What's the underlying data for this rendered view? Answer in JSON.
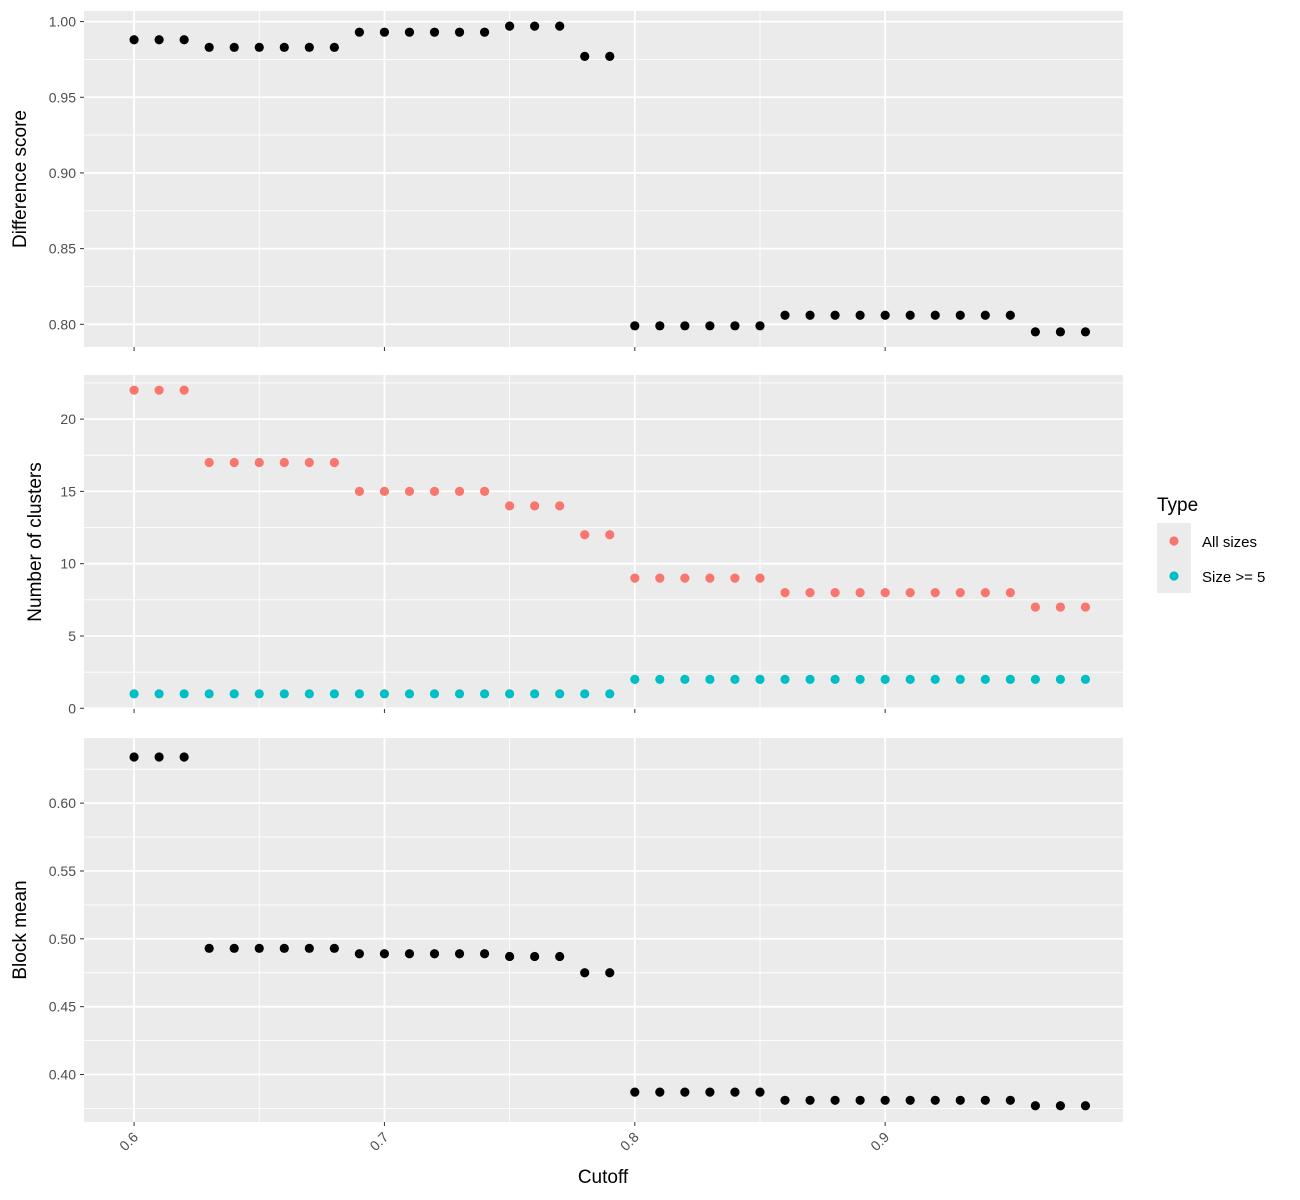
{
  "chart_data": {
    "type": "scatter",
    "xlabel": "Cutoff",
    "x_ticks": [
      "0.6",
      "0.7",
      "0.8",
      "0.9"
    ],
    "x_tick_values": [
      0.6,
      0.7,
      0.8,
      0.9
    ],
    "xlim": [
      0.58,
      0.995
    ],
    "x": [
      0.6,
      0.61,
      0.62,
      0.63,
      0.64,
      0.65,
      0.66,
      0.67,
      0.68,
      0.69,
      0.7,
      0.71,
      0.72,
      0.73,
      0.74,
      0.75,
      0.76,
      0.77,
      0.78,
      0.79,
      0.8,
      0.81,
      0.82,
      0.83,
      0.84,
      0.85,
      0.86,
      0.87,
      0.88,
      0.89,
      0.9,
      0.91,
      0.92,
      0.93,
      0.94,
      0.95,
      0.96,
      0.97,
      0.98
    ],
    "grid": true,
    "panel_background": "#ebebeb",
    "grid_color": "#ffffff",
    "panels": [
      {
        "ylabel": "Difference score",
        "ylim": [
          0.785,
          1.007
        ],
        "y_ticks": [
          "0.80",
          "0.85",
          "0.90",
          "0.95",
          "1.00"
        ],
        "y_tick_values": [
          0.8,
          0.85,
          0.9,
          0.95,
          1.0
        ],
        "series": [
          {
            "color": "#000000",
            "values": [
              0.988,
              0.988,
              0.988,
              0.983,
              0.983,
              0.983,
              0.983,
              0.983,
              0.983,
              0.993,
              0.993,
              0.993,
              0.993,
              0.993,
              0.993,
              0.997,
              0.997,
              0.997,
              0.977,
              0.977,
              0.799,
              0.799,
              0.799,
              0.799,
              0.799,
              0.799,
              0.806,
              0.806,
              0.806,
              0.806,
              0.806,
              0.806,
              0.806,
              0.806,
              0.806,
              0.806,
              0.795,
              0.795,
              0.795
            ]
          }
        ]
      },
      {
        "ylabel": "Number of clusters",
        "ylim": [
          -0.05,
          23.05
        ],
        "y_ticks": [
          "0",
          "5",
          "10",
          "15",
          "20"
        ],
        "y_tick_values": [
          0,
          5,
          10,
          15,
          20
        ],
        "series": [
          {
            "name": "All sizes",
            "color": "#F8766D",
            "values": [
              22,
              22,
              22,
              17,
              17,
              17,
              17,
              17,
              17,
              15,
              15,
              15,
              15,
              15,
              15,
              14,
              14,
              14,
              12,
              12,
              9,
              9,
              9,
              9,
              9,
              9,
              8,
              8,
              8,
              8,
              8,
              8,
              8,
              8,
              8,
              8,
              7,
              7,
              7
            ]
          },
          {
            "name": "Size >= 5",
            "color": "#00BFC4",
            "values": [
              1,
              1,
              1,
              1,
              1,
              1,
              1,
              1,
              1,
              1,
              1,
              1,
              1,
              1,
              1,
              1,
              1,
              1,
              1,
              1,
              2,
              2,
              2,
              2,
              2,
              2,
              2,
              2,
              2,
              2,
              2,
              2,
              2,
              2,
              2,
              2,
              2,
              2,
              2
            ]
          }
        ]
      },
      {
        "ylabel": "Block mean",
        "ylim": [
          0.365,
          0.648
        ],
        "y_ticks": [
          "0.40",
          "0.45",
          "0.50",
          "0.55",
          "0.60"
        ],
        "y_tick_values": [
          0.4,
          0.45,
          0.5,
          0.55,
          0.6
        ],
        "series": [
          {
            "color": "#000000",
            "values": [
              0.634,
              0.634,
              0.634,
              0.493,
              0.493,
              0.493,
              0.493,
              0.493,
              0.493,
              0.489,
              0.489,
              0.489,
              0.489,
              0.489,
              0.489,
              0.487,
              0.487,
              0.487,
              0.475,
              0.475,
              0.387,
              0.387,
              0.387,
              0.387,
              0.387,
              0.387,
              0.381,
              0.381,
              0.381,
              0.381,
              0.381,
              0.381,
              0.381,
              0.381,
              0.381,
              0.381,
              0.377,
              0.377,
              0.377
            ]
          }
        ]
      }
    ],
    "legend": {
      "title": "Type",
      "position": "right",
      "items": [
        {
          "label": "All sizes",
          "color": "#F8766D"
        },
        {
          "label": "Size >= 5",
          "color": "#00BFC4"
        }
      ]
    }
  }
}
